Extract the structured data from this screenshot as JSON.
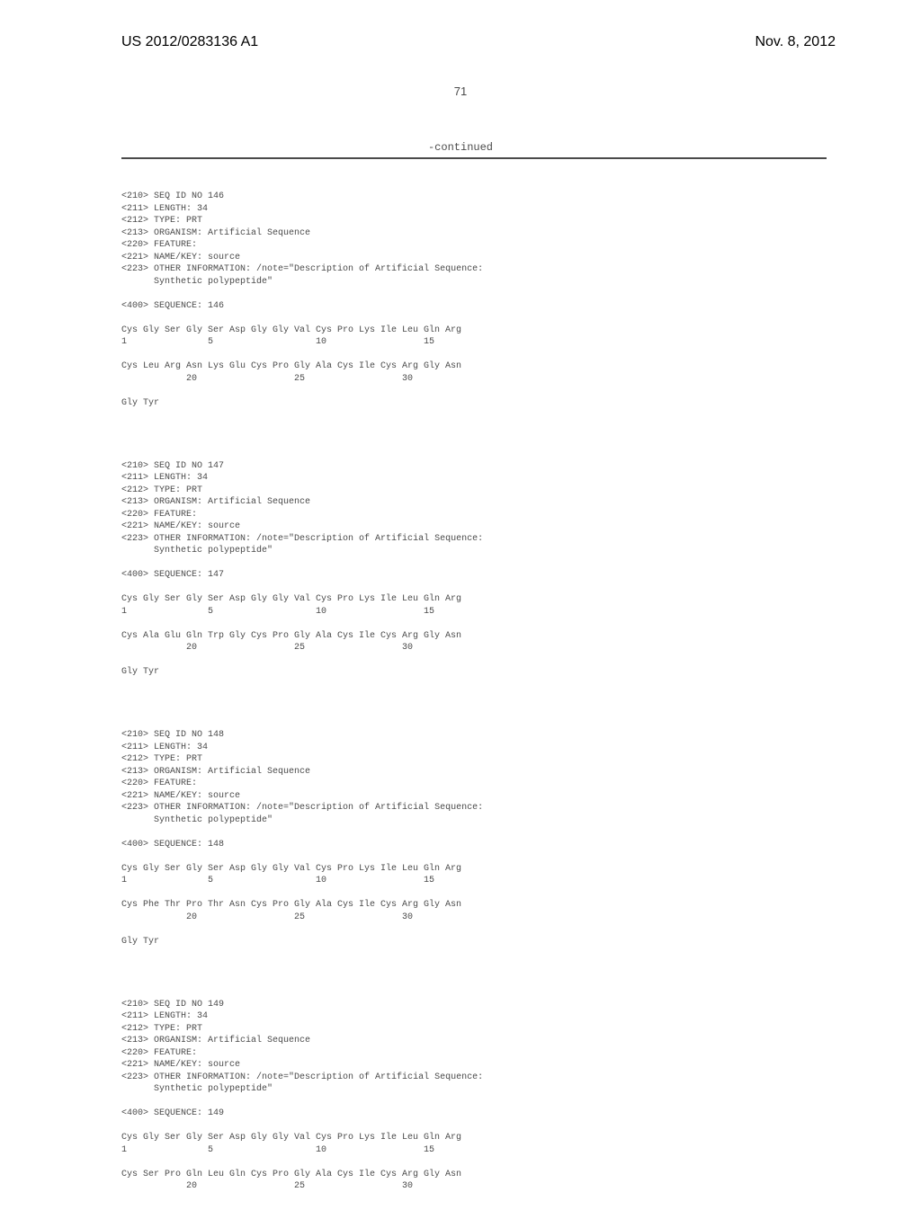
{
  "header": {
    "publication_number": "US 2012/0283136 A1",
    "publication_date": "Nov. 8, 2012"
  },
  "page_number": "71",
  "continued_label": "-continued",
  "sequences": [
    {
      "seq_id": "146",
      "length": "34",
      "type": "PRT",
      "organism": "Artificial Sequence",
      "feature": "FEATURE:",
      "name_key": "source",
      "other_info_1": "OTHER INFORMATION: /note=\"Description of Artificial Sequence:",
      "other_info_2": "      Synthetic polypeptide\"",
      "sequence_label": "SEQUENCE: 146",
      "line1": "Cys Gly Ser Gly Ser Asp Gly Gly Val Cys Pro Lys Ile Leu Gln Arg",
      "pos1": "1               5                   10                  15",
      "line2": "Cys Leu Arg Asn Lys Glu Cys Pro Gly Ala Cys Ile Cys Arg Gly Asn",
      "pos2": "            20                  25                  30",
      "line3": "Gly Tyr"
    },
    {
      "seq_id": "147",
      "length": "34",
      "type": "PRT",
      "organism": "Artificial Sequence",
      "feature": "FEATURE:",
      "name_key": "source",
      "other_info_1": "OTHER INFORMATION: /note=\"Description of Artificial Sequence:",
      "other_info_2": "      Synthetic polypeptide\"",
      "sequence_label": "SEQUENCE: 147",
      "line1": "Cys Gly Ser Gly Ser Asp Gly Gly Val Cys Pro Lys Ile Leu Gln Arg",
      "pos1": "1               5                   10                  15",
      "line2": "Cys Ala Glu Gln Trp Gly Cys Pro Gly Ala Cys Ile Cys Arg Gly Asn",
      "pos2": "            20                  25                  30",
      "line3": "Gly Tyr"
    },
    {
      "seq_id": "148",
      "length": "34",
      "type": "PRT",
      "organism": "Artificial Sequence",
      "feature": "FEATURE:",
      "name_key": "source",
      "other_info_1": "OTHER INFORMATION: /note=\"Description of Artificial Sequence:",
      "other_info_2": "      Synthetic polypeptide\"",
      "sequence_label": "SEQUENCE: 148",
      "line1": "Cys Gly Ser Gly Ser Asp Gly Gly Val Cys Pro Lys Ile Leu Gln Arg",
      "pos1": "1               5                   10                  15",
      "line2": "Cys Phe Thr Pro Thr Asn Cys Pro Gly Ala Cys Ile Cys Arg Gly Asn",
      "pos2": "            20                  25                  30",
      "line3": "Gly Tyr"
    },
    {
      "seq_id": "149",
      "length": "34",
      "type": "PRT",
      "organism": "Artificial Sequence",
      "feature": "FEATURE:",
      "name_key": "source",
      "other_info_1": "OTHER INFORMATION: /note=\"Description of Artificial Sequence:",
      "other_info_2": "      Synthetic polypeptide\"",
      "sequence_label": "SEQUENCE: 149",
      "line1": "Cys Gly Ser Gly Ser Asp Gly Gly Val Cys Pro Lys Ile Leu Gln Arg",
      "pos1": "1               5                   10                  15",
      "line2": "Cys Ser Pro Gln Leu Gln Cys Pro Gly Ala Cys Ile Cys Arg Gly Asn",
      "pos2": "            20                  25                  30",
      "line3": ""
    }
  ]
}
